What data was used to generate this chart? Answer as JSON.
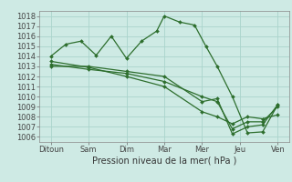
{
  "background_color": "#ceeae4",
  "grid_color": "#aad4cc",
  "line_color": "#2d6e2d",
  "xlabel": "Pression niveau de la mer( hPa )",
  "ylabel": "",
  "xlim": [
    -0.3,
    6.3
  ],
  "ylim": [
    1005.5,
    1018.5
  ],
  "yticks": [
    1006,
    1007,
    1008,
    1009,
    1010,
    1011,
    1012,
    1013,
    1014,
    1015,
    1016,
    1017,
    1018
  ],
  "xtick_labels": [
    "Ditoun",
    "Sam",
    "Dim",
    "Mar",
    "Mer",
    "Jeu",
    "Ven"
  ],
  "xtick_positions": [
    0,
    1,
    2,
    3,
    4,
    5,
    6
  ],
  "series": [
    {
      "x": [
        0.0,
        0.4,
        0.8,
        1.2,
        1.6,
        2.0,
        2.4,
        2.8,
        3.0,
        3.4,
        3.8,
        4.1,
        4.4,
        4.8,
        5.2,
        5.6,
        6.0
      ],
      "y": [
        1014.0,
        1015.2,
        1015.5,
        1014.1,
        1016.0,
        1013.8,
        1015.5,
        1016.5,
        1018.0,
        1017.4,
        1017.1,
        1015.0,
        1013.0,
        1010.0,
        1006.4,
        1006.5,
        1009.2
      ]
    },
    {
      "x": [
        0.0,
        1.0,
        2.0,
        3.0,
        4.0,
        4.4,
        4.8,
        5.2,
        5.6,
        6.0
      ],
      "y": [
        1013.0,
        1013.0,
        1012.5,
        1012.0,
        1009.5,
        1009.8,
        1006.3,
        1007.0,
        1007.2,
        1009.2
      ]
    },
    {
      "x": [
        0.0,
        1.0,
        2.0,
        3.0,
        4.0,
        4.4,
        4.8,
        5.2,
        5.6,
        6.0
      ],
      "y": [
        1013.2,
        1012.7,
        1012.3,
        1011.5,
        1010.0,
        1009.5,
        1006.8,
        1007.5,
        1007.5,
        1009.0
      ]
    },
    {
      "x": [
        0.0,
        1.0,
        2.0,
        3.0,
        4.0,
        4.4,
        4.8,
        5.2,
        5.6,
        6.0
      ],
      "y": [
        1013.5,
        1012.9,
        1012.0,
        1011.0,
        1008.5,
        1008.0,
        1007.3,
        1008.0,
        1007.8,
        1008.2
      ]
    }
  ],
  "tick_fontsize": 6.0,
  "axis_fontsize": 7.0
}
